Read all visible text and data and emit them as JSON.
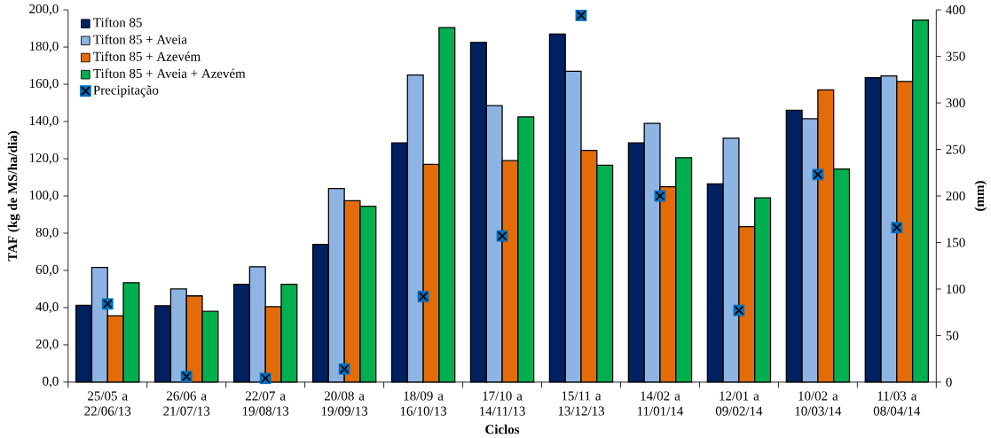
{
  "chart_data": {
    "type": "bar",
    "xlabel": "Ciclos",
    "ylabel": "TAF (kg de MS/ha/dia)",
    "y2label": "(mm)",
    "categories": [
      "25/05 a 22/06/13",
      "26/06 a 21/07/13",
      "22/07 a 19/08/13",
      "20/08 a 19/09/13",
      "18/09 a 16/10/13",
      "17/10 a 14/11/13",
      "15/11 a 13/12/13",
      "14/02 a 11/01/14",
      "12/01 a 09/02/14",
      "10/02 a 10/03/14",
      "11/03 a 08/04/14"
    ],
    "series": [
      {
        "name": "Tifton 85",
        "color": "#002060",
        "values": [
          41.2,
          41,
          52.6,
          74,
          128.5,
          182.5,
          187,
          128.5,
          106.5,
          146,
          163.5
        ]
      },
      {
        "name": "Tifton 85 + Aveia",
        "color": "#8eb4e3",
        "values": [
          61.6,
          50,
          62,
          104,
          165,
          148.5,
          167,
          139,
          131,
          141.5,
          164.5
        ]
      },
      {
        "name": "Tifton 85 + Azevém",
        "color": "#e36c09",
        "values": [
          35.6,
          46.3,
          40.5,
          97.5,
          117,
          119,
          124.5,
          105,
          83.5,
          157,
          161.5
        ]
      },
      {
        "name": "Tifton 85 + Aveia + Azevém",
        "color": "#00b050",
        "values": [
          53.4,
          38,
          52.5,
          94.5,
          190.5,
          142.5,
          116.5,
          120.5,
          99,
          114.5,
          194.5
        ]
      },
      {
        "name": "Precipitação",
        "color": "#0070c0",
        "type": "scatter",
        "axis": "y2",
        "marker": "square",
        "values": [
          84,
          6,
          4,
          14,
          92,
          157,
          394,
          200,
          77,
          223,
          166
        ]
      }
    ],
    "ylim": [
      0,
      200
    ],
    "yticks": [
      {
        "value": 0,
        "label": "0,0"
      },
      {
        "value": 20,
        "label": "20,0"
      },
      {
        "value": 40,
        "label": "40,0"
      },
      {
        "value": 60,
        "label": "60,0"
      },
      {
        "value": 80,
        "label": "80,0"
      },
      {
        "value": 100,
        "label": "100,0"
      },
      {
        "value": 120,
        "label": "120,0"
      },
      {
        "value": 140,
        "label": "140,0"
      },
      {
        "value": 160,
        "label": "160,0"
      },
      {
        "value": 180,
        "label": "180,0"
      },
      {
        "value": 200,
        "label": "200,0"
      }
    ],
    "y2lim": [
      0,
      400
    ],
    "y2ticks": [
      0,
      50,
      100,
      150,
      200,
      250,
      300,
      350,
      400
    ],
    "legend": "top left"
  }
}
